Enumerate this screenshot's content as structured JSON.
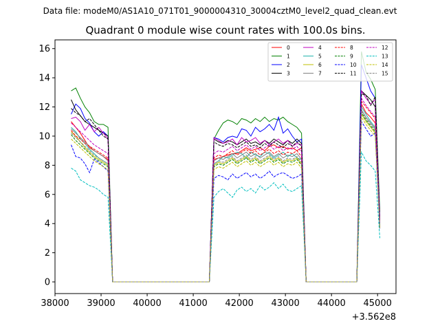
{
  "suptitle": "Data file: modeM0/AS1A10_071T01_9000004310_30004cztM0_level2_quad_clean.evt",
  "chart_data": {
    "type": "line",
    "title": "Quadrant 0 module wise count rates with 100.0s bins.",
    "xlabel": "",
    "ylabel": "",
    "offset_label": "+3.562e8",
    "xlim": [
      38000,
      45400
    ],
    "ylim": [
      -0.8,
      16.6
    ],
    "xticks": [
      38000,
      39000,
      40000,
      41000,
      42000,
      43000,
      44000,
      45000
    ],
    "xtick_labels": [
      "38000",
      "39000",
      "40000",
      "41000",
      "42000",
      "43000",
      "44000",
      "45000"
    ],
    "yticks": [
      0,
      2,
      4,
      6,
      8,
      10,
      12,
      14,
      16
    ],
    "ytick_labels": [
      "0",
      "2",
      "4",
      "6",
      "8",
      "10",
      "12",
      "14",
      "16"
    ],
    "legend_position": "upper-right",
    "legend_columns": 4,
    "segments": [
      {
        "x_start": 38350,
        "x_end": 39150
      },
      {
        "x_start": 41450,
        "x_end": 43350
      },
      {
        "x_start": 44650,
        "x_end": 44950
      }
    ],
    "gap_value": 0,
    "gap_x": [
      39250,
      41350,
      43450,
      44550
    ],
    "edge_points": {
      "x_first": 38350,
      "x_last": 45050
    },
    "series": [
      {
        "name": "0",
        "color": "#ff0000",
        "dash": "solid",
        "seg_values": [
          [
            11.0,
            10.6,
            10.2,
            9.7,
            9.2,
            9.0,
            8.8,
            8.6,
            8.4
          ],
          [
            8.4,
            8.5,
            8.6,
            8.7,
            8.8,
            8.8,
            9.0,
            9.2,
            9.0,
            9.1,
            9.2,
            9.0,
            9.3,
            9.4,
            9.2,
            9.3,
            9.1,
            9.2,
            9.0,
            9.2
          ],
          [
            12.2,
            11.6,
            11.3,
            10.9
          ]
        ],
        "last": 4.2
      },
      {
        "name": "1",
        "color": "#008000",
        "dash": "solid",
        "seg_values": [
          [
            13.1,
            13.3,
            12.6,
            12.0,
            11.6,
            11.0,
            10.8,
            10.8,
            10.6
          ],
          [
            9.8,
            10.4,
            10.9,
            11.1,
            11.0,
            10.8,
            11.2,
            11.1,
            10.9,
            11.2,
            11.0,
            11.3,
            11.0,
            11.2,
            11.1,
            11.3,
            11.0,
            10.8,
            10.6,
            10.2
          ],
          [
            15.8,
            14.4,
            13.9,
            13.2
          ]
        ],
        "last": 4.8
      },
      {
        "name": "2",
        "color": "#0000ff",
        "dash": "solid",
        "seg_values": [
          [
            11.5,
            12.2,
            11.9,
            11.2,
            10.9,
            10.3,
            10.0,
            10.3,
            10.0
          ],
          [
            9.9,
            9.8,
            9.6,
            9.9,
            10.0,
            9.9,
            10.5,
            10.4,
            10.0,
            10.6,
            10.3,
            10.5,
            10.8,
            10.4,
            11.3,
            10.2,
            10.5,
            10.0,
            9.6,
            9.8
          ],
          [
            14.9,
            14.0,
            13.1,
            12.6
          ]
        ],
        "last": 4.4
      },
      {
        "name": "3",
        "color": "#000000",
        "dash": "solid",
        "seg_values": [
          [
            12.5,
            11.8,
            11.4,
            11.0,
            10.8,
            10.6,
            10.4,
            10.2,
            10.0
          ],
          [
            9.8,
            9.6,
            9.5,
            9.7,
            9.6,
            9.4,
            9.6,
            9.8,
            9.5,
            9.6,
            9.4,
            9.7,
            9.5,
            9.8,
            9.6,
            9.4,
            9.7,
            9.5,
            9.8,
            9.5
          ],
          [
            13.1,
            12.8,
            12.5,
            12.0
          ]
        ],
        "last": 4.3
      },
      {
        "name": "4",
        "color": "#bf00bf",
        "dash": "solid",
        "seg_values": [
          [
            11.2,
            11.3,
            11.0,
            10.4,
            10.8,
            10.3,
            10.6,
            10.2,
            9.8
          ],
          [
            9.9,
            9.7,
            9.5,
            9.6,
            9.8,
            9.4,
            9.9,
            9.6,
            9.7,
            9.9,
            9.5,
            9.7,
            9.4,
            9.6,
            9.8,
            9.5,
            9.7,
            9.3,
            9.5,
            9.4
          ],
          [
            13.1,
            12.6,
            12.2,
            12.5
          ]
        ],
        "last": 4.1
      },
      {
        "name": "5",
        "color": "#20b2aa",
        "dash": "solid",
        "seg_values": [
          [
            10.6,
            10.3,
            9.8,
            9.5,
            9.1,
            8.8,
            8.5,
            8.3,
            8.1
          ],
          [
            8.1,
            8.3,
            8.6,
            8.5,
            8.7,
            8.9,
            8.8,
            8.5,
            8.9,
            8.7,
            8.6,
            8.9,
            8.8,
            8.5,
            8.7,
            8.9,
            8.6,
            8.8,
            8.5,
            8.4
          ],
          [
            12.0,
            11.5,
            11.0,
            10.6
          ]
        ],
        "last": 3.9
      },
      {
        "name": "6",
        "color": "#bfbf00",
        "dash": "solid",
        "seg_values": [
          [
            10.3,
            10.0,
            9.6,
            9.2,
            8.9,
            8.6,
            8.4,
            8.2,
            8.0
          ],
          [
            8.0,
            8.2,
            8.1,
            8.3,
            8.5,
            8.2,
            8.4,
            8.6,
            8.3,
            8.5,
            8.2,
            8.4,
            8.6,
            8.3,
            8.5,
            8.2,
            8.4,
            8.3,
            8.5,
            8.1
          ],
          [
            11.5,
            11.0,
            10.6,
            10.2
          ]
        ],
        "last": 3.8
      },
      {
        "name": "7",
        "color": "#808080",
        "dash": "solid",
        "seg_values": [
          [
            10.5,
            10.2,
            9.9,
            9.6,
            9.3,
            9.0,
            8.8,
            8.6,
            8.3
          ],
          [
            8.3,
            8.5,
            8.4,
            8.6,
            8.8,
            8.5,
            8.7,
            8.9,
            8.6,
            8.8,
            8.5,
            8.7,
            8.9,
            8.6,
            8.8,
            8.5,
            8.7,
            8.6,
            8.8,
            8.4
          ],
          [
            11.8,
            11.3,
            10.9,
            10.5
          ]
        ],
        "last": 4.0
      },
      {
        "name": "8",
        "color": "#ff0000",
        "dash": "dashed",
        "seg_values": [
          [
            10.4,
            10.0,
            9.8,
            9.5,
            9.3,
            9.1,
            8.9,
            8.7,
            8.5
          ],
          [
            8.5,
            8.7,
            8.6,
            8.8,
            9.0,
            8.7,
            8.9,
            9.1,
            8.8,
            9.0,
            8.7,
            8.9,
            9.1,
            8.8,
            9.0,
            8.7,
            8.9,
            8.8,
            9.0,
            8.6
          ],
          [
            12.4,
            12.0,
            11.6,
            11.2
          ]
        ],
        "last": 4.1
      },
      {
        "name": "9",
        "color": "#008000",
        "dash": "dashed",
        "seg_values": [
          [
            10.1,
            9.7,
            9.4,
            9.1,
            8.8,
            8.5,
            8.3,
            8.1,
            7.9
          ],
          [
            7.9,
            8.1,
            8.0,
            8.2,
            8.4,
            8.1,
            8.3,
            8.5,
            8.2,
            8.4,
            8.1,
            8.3,
            8.5,
            8.2,
            8.4,
            8.1,
            8.3,
            8.2,
            8.4,
            8.0
          ],
          [
            11.6,
            11.1,
            10.7,
            10.3
          ]
        ],
        "last": 3.8
      },
      {
        "name": "10",
        "color": "#0000ff",
        "dash": "dashed",
        "seg_values": [
          [
            9.4,
            8.6,
            8.5,
            8.1,
            7.5,
            8.4,
            8.2,
            7.9,
            7.6
          ],
          [
            7.1,
            7.3,
            7.2,
            7.0,
            7.4,
            7.1,
            7.3,
            7.5,
            7.2,
            7.4,
            7.1,
            7.3,
            7.6,
            7.2,
            7.4,
            7.5,
            7.3,
            7.1,
            7.2,
            7.4
          ],
          [
            11.0,
            10.5,
            10.0,
            10.2
          ]
        ],
        "last": 3.6
      },
      {
        "name": "11",
        "color": "#000000",
        "dash": "dashed",
        "seg_values": [
          [
            11.9,
            11.6,
            11.4,
            11.0,
            11.2,
            10.8,
            10.4,
            10.0,
            9.8
          ],
          [
            9.6,
            9.4,
            9.3,
            9.5,
            9.4,
            9.2,
            9.4,
            9.6,
            9.3,
            9.4,
            9.2,
            9.5,
            9.3,
            9.6,
            9.4,
            9.2,
            9.5,
            9.3,
            9.6,
            9.3
          ],
          [
            12.9,
            12.8,
            12.1,
            12.7
          ]
        ],
        "last": 4.2
      },
      {
        "name": "12",
        "color": "#bf00bf",
        "dash": "dashed",
        "seg_values": [
          [
            10.9,
            10.6,
            10.3,
            10.0,
            9.7,
            9.4,
            9.2,
            9.0,
            8.8
          ],
          [
            8.8,
            9.0,
            8.9,
            9.1,
            9.3,
            9.0,
            9.2,
            9.4,
            9.1,
            9.3,
            9.0,
            9.2,
            9.4,
            9.1,
            9.3,
            9.0,
            9.2,
            9.1,
            9.3,
            8.9
          ],
          [
            12.6,
            12.1,
            11.7,
            11.3
          ]
        ],
        "last": 4.1
      },
      {
        "name": "13",
        "color": "#00bfbf",
        "dash": "dashed",
        "seg_values": [
          [
            7.8,
            7.6,
            7.0,
            6.8,
            6.6,
            6.5,
            6.3,
            6.0,
            5.8
          ],
          [
            5.8,
            6.2,
            6.4,
            6.1,
            5.8,
            6.3,
            6.5,
            6.2,
            6.4,
            6.1,
            6.6,
            6.3,
            6.5,
            6.8,
            6.4,
            6.7,
            6.3,
            6.2,
            6.4,
            6.6
          ],
          [
            8.9,
            8.3,
            8.0,
            7.6
          ]
        ],
        "last": 3.0
      },
      {
        "name": "14",
        "color": "#bfbf00",
        "dash": "dashed",
        "seg_values": [
          [
            9.8,
            9.5,
            9.2,
            8.9,
            8.6,
            8.3,
            8.1,
            7.9,
            7.7
          ],
          [
            7.7,
            7.9,
            7.8,
            8.0,
            8.2,
            7.9,
            8.1,
            8.3,
            8.0,
            8.2,
            7.9,
            8.1,
            8.3,
            8.0,
            8.2,
            7.9,
            8.1,
            8.0,
            8.2,
            7.8
          ],
          [
            11.3,
            10.8,
            10.4,
            10.0
          ]
        ],
        "last": 3.7
      },
      {
        "name": "15",
        "color": "#808080",
        "dash": "dashed",
        "seg_values": [
          [
            10.2,
            9.9,
            9.6,
            9.3,
            9.0,
            8.7,
            8.5,
            8.3,
            8.1
          ],
          [
            8.1,
            8.3,
            8.2,
            8.4,
            8.6,
            8.3,
            8.5,
            8.7,
            8.4,
            8.6,
            8.3,
            8.5,
            8.7,
            8.4,
            8.6,
            8.3,
            8.5,
            8.4,
            8.6,
            8.2
          ],
          [
            11.7,
            11.2,
            10.8,
            10.4
          ]
        ],
        "last": 3.9
      }
    ]
  }
}
